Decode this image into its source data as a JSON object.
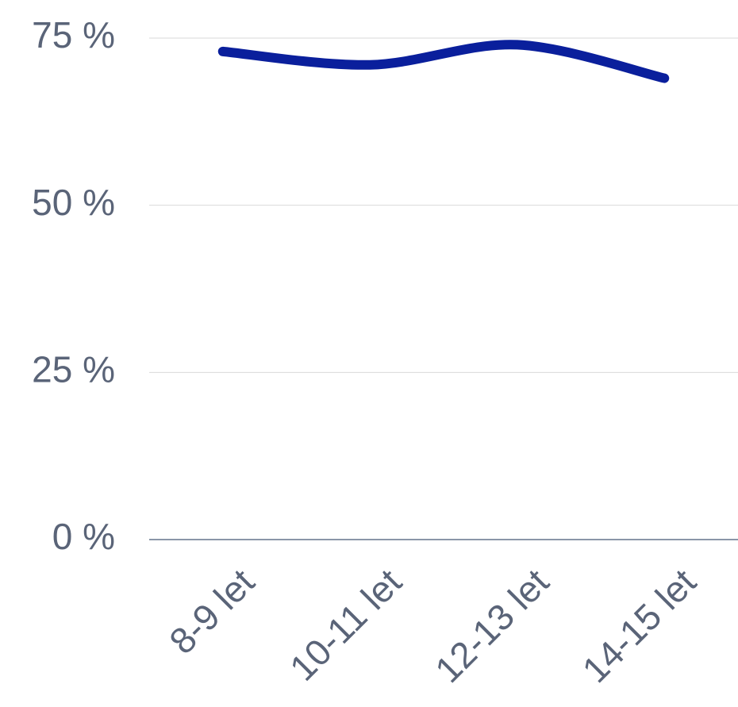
{
  "chart_data": {
    "type": "line",
    "categories": [
      "8-9 let",
      "10-11 let",
      "12-13 let",
      "14-15 let"
    ],
    "values": [
      73,
      71,
      74,
      69
    ],
    "color": "#0a1f9c",
    "ylim": [
      0,
      75
    ],
    "yticks": [
      {
        "value": 0,
        "label": "0 %"
      },
      {
        "value": 25,
        "label": "25 %"
      },
      {
        "value": 50,
        "label": "50 %"
      },
      {
        "value": 75,
        "label": "75 %"
      }
    ],
    "grid": true,
    "smooth": true
  }
}
